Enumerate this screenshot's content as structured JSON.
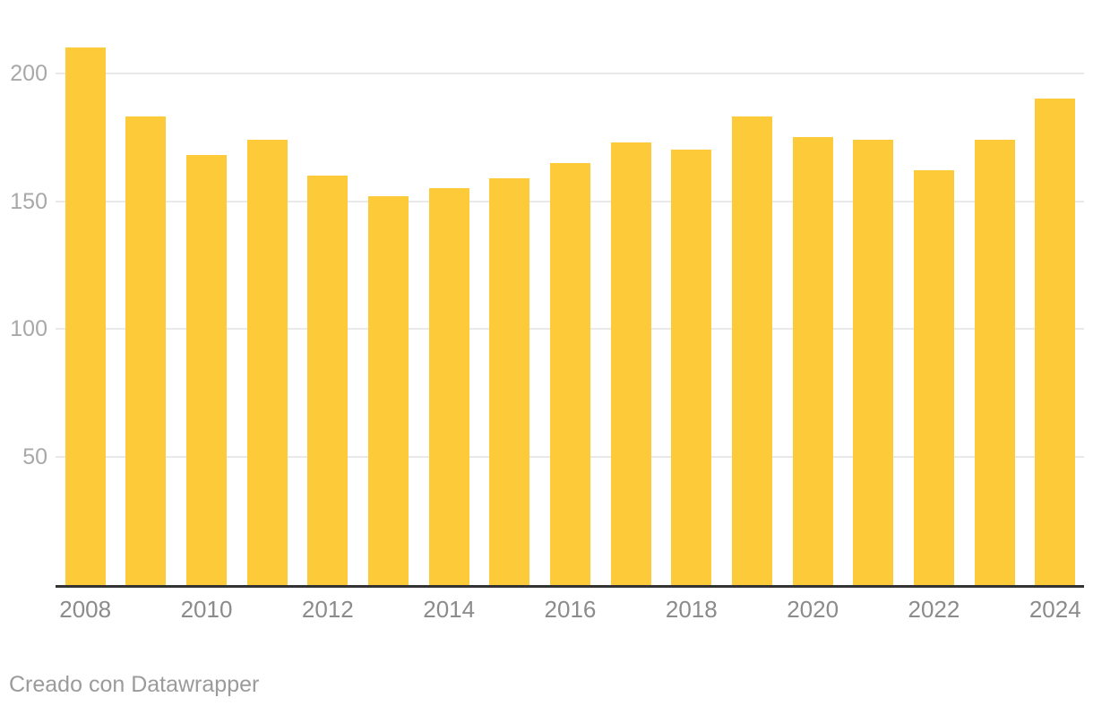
{
  "chart_data": {
    "type": "bar",
    "title": "",
    "xlabel": "",
    "ylabel": "",
    "categories": [
      "2008",
      "2009",
      "2010",
      "2011",
      "2012",
      "2013",
      "2014",
      "2015",
      "2016",
      "2017",
      "2018",
      "2019",
      "2020",
      "2021",
      "2022",
      "2023",
      "2024"
    ],
    "values": [
      210,
      183,
      168,
      174,
      160,
      152,
      155,
      159,
      165,
      173,
      170,
      183,
      175,
      174,
      162,
      174,
      190
    ],
    "ylim": [
      0,
      215
    ],
    "yticks": [
      50,
      100,
      150,
      200
    ],
    "xtick_labels": [
      "2008",
      "2010",
      "2012",
      "2014",
      "2016",
      "2018",
      "2020",
      "2022",
      "2024"
    ],
    "grid": "horizontal-only",
    "legend_position": "none",
    "bar_color": "#FDCA39"
  },
  "footer": {
    "attribution": "Creado con Datawrapper"
  },
  "colors": {
    "background": "#ffffff",
    "bar": "#FDCA39",
    "gridline": "#e9e9e9",
    "axis_line": "#333333",
    "y_tick_label": "#a8a8a8",
    "x_tick_label": "#8b8b8b",
    "footer_text": "#9b9b9b"
  }
}
